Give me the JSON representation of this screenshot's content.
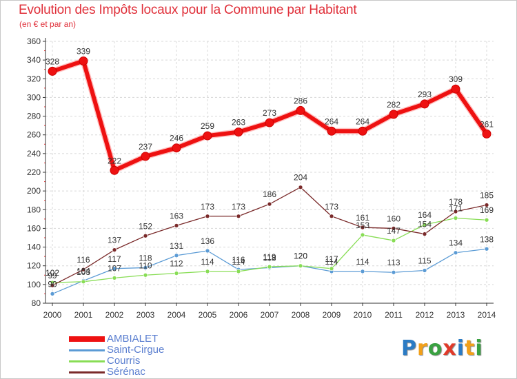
{
  "chart_data": {
    "type": "line",
    "title": "Evolution des Impôts locaux pour la Commune par Habitant",
    "subtitle": "(en € et par an)",
    "x": [
      "2000",
      "2001",
      "2002",
      "2003",
      "2004",
      "2005",
      "2006",
      "2007",
      "2008",
      "2009",
      "2010",
      "2011",
      "2012",
      "2013",
      "2014"
    ],
    "ylim": [
      80,
      360
    ],
    "yticks": [
      80,
      100,
      120,
      140,
      160,
      180,
      200,
      220,
      240,
      260,
      280,
      300,
      320,
      340,
      360
    ],
    "grid": true,
    "legend_position": "bottom-left",
    "series": [
      {
        "name": "AMBIALET",
        "color": "#ee1111",
        "values": [
          328,
          339,
          222,
          237,
          246,
          259,
          263,
          273,
          286,
          264,
          264,
          282,
          293,
          309,
          261
        ],
        "labels": [
          "328",
          "339",
          "222",
          "237",
          "246",
          "259",
          "263",
          "273",
          "286",
          "264",
          "264",
          "282",
          "293",
          "309",
          "261"
        ]
      },
      {
        "name": "Saint-Cirgue",
        "color": "#5b9bd5",
        "values": [
          90,
          104,
          117,
          118,
          131,
          136,
          116,
          118,
          120,
          114,
          114,
          113,
          115,
          134,
          138
        ],
        "labels": [
          "90",
          "104",
          "117",
          "118",
          "131",
          "136",
          "116",
          "118",
          "120",
          "114",
          "114",
          "113",
          "115",
          "134",
          "138"
        ]
      },
      {
        "name": "Courris",
        "color": "#88dd55",
        "values": [
          102,
          103,
          107,
          110,
          112,
          114,
          114,
          119,
          120,
          117,
          153,
          147,
          164,
          171,
          169
        ],
        "labels": [
          "102",
          "103",
          "107",
          "110",
          "112",
          "114",
          "114",
          "119",
          "120",
          "117",
          "153",
          "147",
          "164",
          "171",
          "169"
        ]
      },
      {
        "name": "Sérénac",
        "color": "#7a2a2a",
        "values": [
          99,
          116,
          137,
          152,
          163,
          173,
          173,
          186,
          204,
          173,
          161,
          160,
          154,
          178,
          185
        ],
        "labels": [
          "99",
          "116",
          "137",
          "152",
          "163",
          "173",
          "173",
          "186",
          "204",
          "173",
          "161",
          "160",
          "154",
          "178",
          "185"
        ]
      }
    ]
  },
  "logo": {
    "letters": [
      "P",
      "r",
      "o",
      "x",
      "i",
      "t",
      "i"
    ],
    "colors": [
      "#2b7bc4",
      "#f2a019",
      "#3aa142",
      "#e03a2a",
      "#2b7bc4",
      "#f2a019",
      "#3aa142"
    ]
  }
}
